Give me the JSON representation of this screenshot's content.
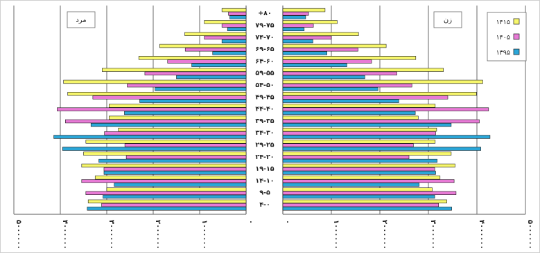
{
  "chart_data": {
    "type": "bar",
    "orientation": "horizontal",
    "layout": "population-pyramid",
    "grid": true,
    "legend_position": "top-right",
    "categories": [
      "+۸۰",
      "۷۹-۷۵",
      "۷۴-۷۰",
      "۶۹-۶۵",
      "۶۴-۶۰",
      "۵۹-۵۵",
      "۵۴-۵۰",
      "۴۹-۴۵",
      "۴۴-۴۰",
      "۳۹-۳۵",
      "۳۴-۳۰",
      "۲۹-۲۵",
      "۲۴-۲۰",
      "۱۹-۱۵",
      "۱۴-۱۰",
      "۹-۵",
      "۴-۰"
    ],
    "panels": [
      {
        "title": "مرد",
        "side": "left",
        "xlim": [
          0,
          5000000
        ],
        "ticks": [
          0,
          1000000,
          2000000,
          3000000,
          4000000,
          5000000
        ],
        "tick_labels": [
          "۰",
          "۱۰۰۰۰۰۰",
          "۲۰۰۰۰۰۰",
          "۳۰۰۰۰۰۰",
          "۴۰۰۰۰۰۰",
          "۵۰۰۰۰۰۰"
        ],
        "series": [
          {
            "name": "۱۴۱۵",
            "color": "#f7f76b",
            "values": [
              520000,
              900000,
              1320000,
              1860000,
              2310000,
              3100000,
              3930000,
              3840000,
              2950000,
              2950000,
              2750000,
              3450000,
              3500000,
              3540000,
              3250000,
              3000000,
              3400000
            ]
          },
          {
            "name": "۱۴۰۵",
            "color": "#e87ad6",
            "values": [
              380000,
              520000,
              900000,
              1310000,
              1690000,
              2180000,
              2560000,
              3300000,
              4070000,
              3890000,
              3050000,
              2610000,
              2580000,
              3060000,
              3540000,
              3450000,
              3110000
            ]
          },
          {
            "name": "۱۳۹۵",
            "color": "#2aa6d8",
            "values": [
              350000,
              400000,
              520000,
              720000,
              1170000,
              1500000,
              1960000,
              2290000,
              2620000,
              3340000,
              4140000,
              3950000,
              3170000,
              3060000,
              2840000,
              3080000,
              3420000
            ]
          }
        ]
      },
      {
        "title": "زن",
        "side": "right",
        "xlim": [
          0,
          5000000
        ],
        "ticks": [
          0,
          1000000,
          2000000,
          3000000,
          4000000,
          5000000
        ],
        "tick_labels": [
          "۰",
          "۱۰۰۰۰۰۰",
          "۲۰۰۰۰۰۰",
          "۳۰۰۰۰۰۰",
          "۴۰۰۰۰۰۰",
          "۵۰۰۰۰۰۰"
        ],
        "series": [
          {
            "name": "۱۴۱۵",
            "color": "#f7f76b",
            "values": [
              870000,
              1120000,
              1560000,
              2130000,
              2740000,
              3310000,
              4120000,
              3990000,
              3140000,
              2790000,
              3170000,
              3140000,
              3470000,
              3550000,
              3240000,
              3080000,
              3380000
            ]
          },
          {
            "name": "۱۴۰۵",
            "color": "#e87ad6",
            "values": [
              530000,
              630000,
              1000000,
              1550000,
              1830000,
              2350000,
              2660000,
              3400000,
              4240000,
              4050000,
              3150000,
              2690000,
              2600000,
              3130000,
              3530000,
              3570000,
              3210000
            ]
          },
          {
            "name": "۱۳۹۵",
            "color": "#2aa6d8",
            "values": [
              470000,
              440000,
              620000,
              910000,
              1320000,
              1690000,
              1960000,
              2390000,
              2730000,
              3470000,
              4270000,
              4080000,
              3180000,
              3150000,
              2810000,
              3130000,
              3480000
            ]
          }
        ]
      }
    ],
    "legend": [
      "۱۴۱۵",
      "۱۴۰۵",
      "۱۳۹۵"
    ]
  }
}
